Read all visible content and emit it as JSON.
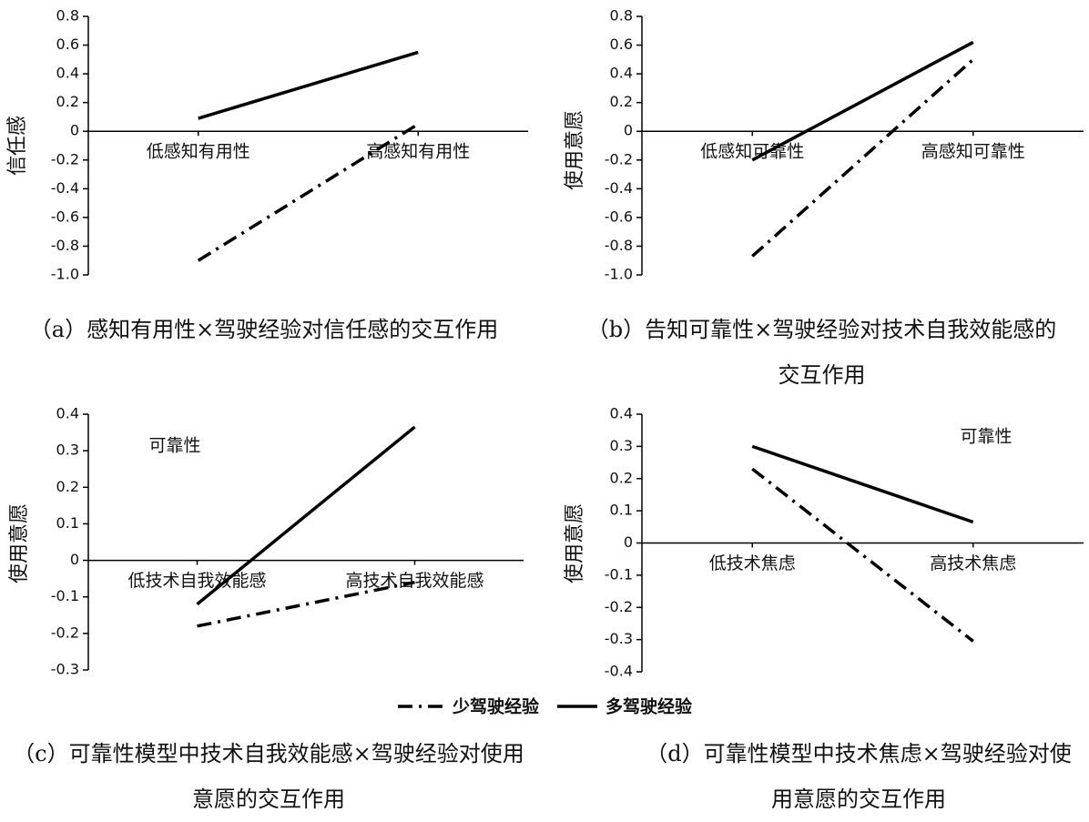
{
  "chart_data": [
    {
      "type": "line",
      "title": "（a）感知有用性×驾驶经验对信任感的交互作用",
      "ylabel": "信任感",
      "categories": [
        "低感知有用性",
        "高感知有用性"
      ],
      "series": [
        {
          "name": "少驾驶经验",
          "color": "#000000",
          "style": "dashdot",
          "values": [
            -0.9,
            0.05
          ]
        },
        {
          "name": "多驾驶经验",
          "color": "#000000",
          "style": "solid",
          "values": [
            0.09,
            0.55
          ]
        }
      ],
      "ylim": [
        -1,
        0.8
      ],
      "yticks": [
        0.8,
        0.6,
        0.4,
        0.2,
        0,
        -0.2,
        -0.4,
        -0.6,
        -0.8,
        {
          "value": -1,
          "label": "-1.0"
        }
      ]
    },
    {
      "type": "line",
      "title": "（b）告知可靠性×驾驶经验对技术自我效能感的交互作用",
      "ylabel": "使用意愿",
      "categories": [
        "低感知可靠性",
        "高感知可靠性"
      ],
      "series": [
        {
          "color": "#000000",
          "style": "dashdot",
          "values": [
            -0.87,
            0.5
          ]
        },
        {
          "color": "#000000",
          "style": "solid",
          "values": [
            -0.2,
            0.62
          ]
        }
      ],
      "ylim": [
        -1,
        0.8
      ],
      "yticks": [
        0.8,
        0.6,
        0.4,
        0.2,
        0,
        -0.2,
        -0.4,
        -0.6,
        -0.8,
        {
          "value": -1,
          "label": "-1.0"
        }
      ]
    },
    {
      "type": "line",
      "title": "（c）可靠性模型中技术自我效能感×驾驶经验对使用意愿的交互作用",
      "ylabel": "使用意愿",
      "annotation": "可靠性",
      "categories": [
        "低技术自我效能感",
        "高技术自我效能感"
      ],
      "series": [
        {
          "color": "#000000",
          "style": "dashdot",
          "values": [
            -0.18,
            -0.06
          ]
        },
        {
          "color": "#000000",
          "style": "solid",
          "values": [
            -0.12,
            0.365
          ]
        }
      ],
      "ylim": [
        -0.3,
        0.4
      ],
      "yticks": [
        0.4,
        0.3,
        0.2,
        0.1,
        0,
        -0.1,
        -0.2,
        -0.3
      ]
    },
    {
      "type": "line",
      "title": "（d）可靠性模型中技术焦虑×驾驶经验对使用意愿的交互作用",
      "ylabel": "使用意愿",
      "annotation": "可靠性",
      "categories": [
        "低技术焦虑",
        "高技术焦虑"
      ],
      "series": [
        {
          "color": "#000000",
          "style": "dashdot",
          "values": [
            0.23,
            -0.305
          ]
        },
        {
          "color": "#000000",
          "style": "solid",
          "values": [
            0.3,
            0.065
          ]
        }
      ],
      "ylim": [
        -0.4,
        0.4
      ],
      "yticks": [
        0.4,
        0.3,
        0.2,
        0.1,
        0,
        -0.1,
        -0.2,
        -0.3,
        -0.4
      ]
    }
  ]
}
